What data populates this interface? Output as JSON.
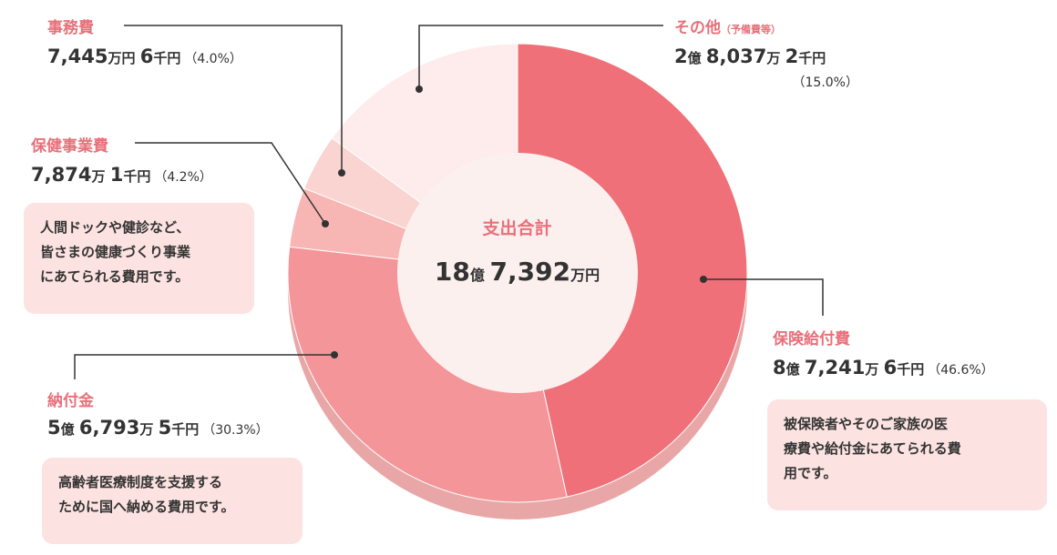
{
  "center": {
    "title": "支出合計",
    "amount_int": "18",
    "unit_oku": "億",
    "amount_man": "7,392",
    "unit_man": "万円"
  },
  "chart_data": {
    "type": "pie",
    "style": "donut",
    "title": "",
    "slices": [
      {
        "name": "保険給付費",
        "value": 46.6,
        "color": "#f07079"
      },
      {
        "name": "納付金",
        "value": 30.3,
        "color": "#f4959a"
      },
      {
        "name": "保健事業費",
        "value": 4.2,
        "color": "#f7b6b3"
      },
      {
        "name": "事務費",
        "value": 4.0,
        "color": "#fad4d0"
      },
      {
        "name": "その他",
        "value": 15.0,
        "color": "#fdeceb"
      }
    ]
  },
  "labels": {
    "jimuhi": {
      "title": "事務費",
      "man": "7,445",
      "u_man": "万円",
      "sen": "6",
      "u_sen": "千円",
      "pct": "（4.0%）"
    },
    "sonota": {
      "title": "その他",
      "note": "（予備費等）",
      "oku": "2",
      "u_oku": "億",
      "man": "8,037",
      "u_man": "万",
      "sen": "2",
      "u_sen": "千円",
      "pct": "（15.0%）"
    },
    "hoken_jigyo": {
      "title": "保健事業費",
      "man": "7,874",
      "u_man": "万",
      "sen": "1",
      "u_sen": "千円",
      "pct": "（4.2%）"
    },
    "hoken_kyufu": {
      "title": "保険給付費",
      "oku": "8",
      "u_oku": "億",
      "man": "7,241",
      "u_man": "万",
      "sen": "6",
      "u_sen": "千円",
      "pct": "（46.6%）"
    },
    "nofukin": {
      "title": "納付金",
      "oku": "5",
      "u_oku": "億",
      "man": "6,793",
      "u_man": "万",
      "sen": "5",
      "u_sen": "千円",
      "pct": "（30.3%）"
    }
  },
  "notes": {
    "hoken_jigyo": [
      "人間ドックや健診など、",
      "皆さまの健康づくり事業",
      "にあてられる費用です。"
    ],
    "hoken_kyufu": [
      "被保険者やそのご家族の医",
      "療費や給付金にあてられる費",
      "用です。"
    ],
    "nofukin": [
      "高齢者医療制度を支援する",
      "ために国へ納める費用です。"
    ]
  }
}
